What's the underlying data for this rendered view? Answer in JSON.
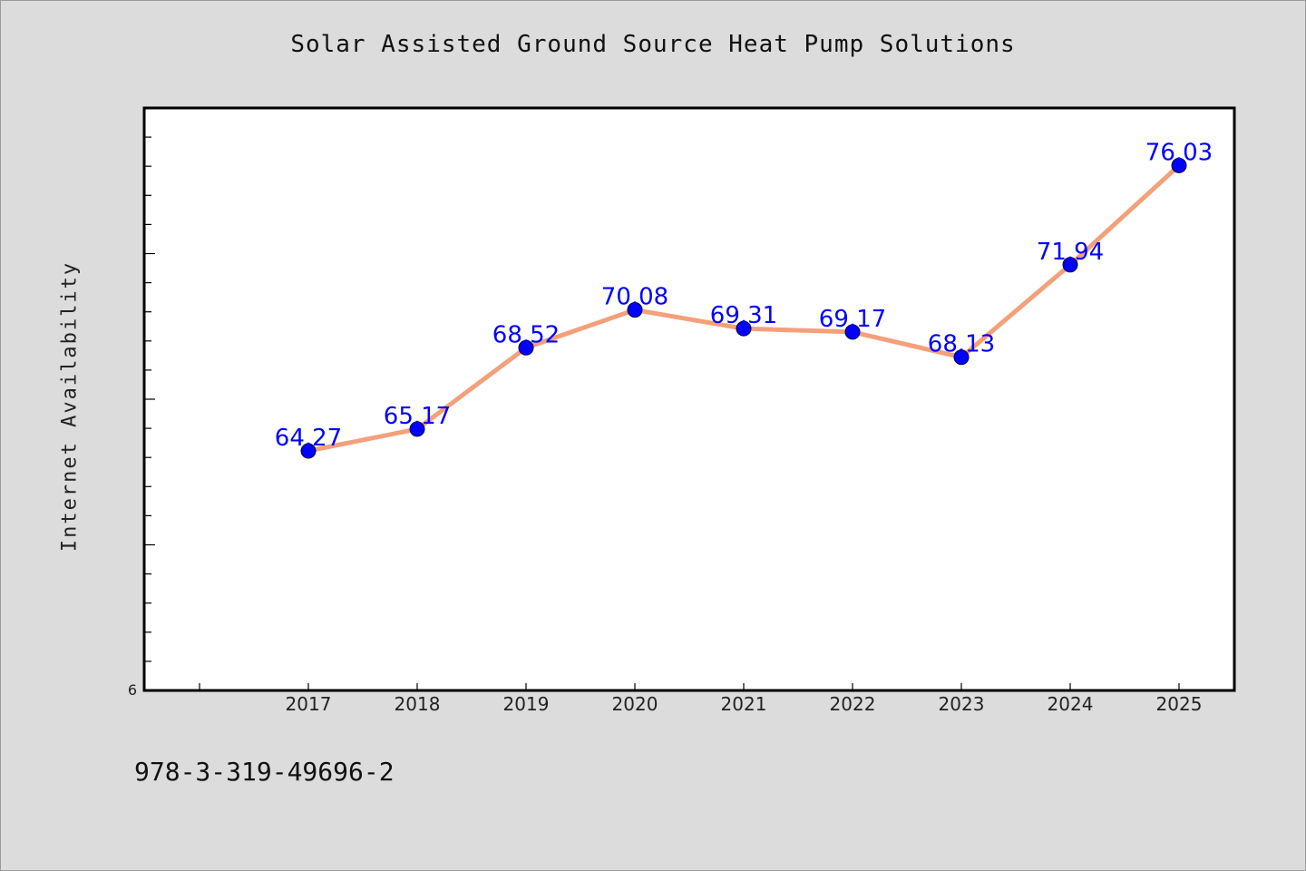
{
  "title": "Solar Assisted Ground Source Heat Pump Solutions",
  "footer_code": "978-3-319-49696-2",
  "colors": {
    "background": "#dcdcdc",
    "plot_background": "#ffffff",
    "line": "#f4a07a",
    "marker": "#0000ff",
    "data_label": "#0000ff"
  },
  "chart_data": {
    "type": "line",
    "title": "Solar Assisted Ground Source Heat Pump Solutions",
    "xlabel": "",
    "ylabel": "Internet Availability",
    "categories": [
      "2017",
      "2018",
      "2019",
      "2020",
      "2021",
      "2022",
      "2023",
      "2024",
      "2025"
    ],
    "values": [
      64.27,
      65.17,
      68.52,
      70.08,
      69.31,
      69.17,
      68.13,
      71.94,
      76.03
    ],
    "data_labels": [
      "64.27",
      "65.17",
      "68.52",
      "70.08",
      "69.31",
      "69.17",
      "68.13",
      "71.94",
      "76.03"
    ],
    "y_tick_labels": [
      "6"
    ],
    "ylim": [
      54.4,
      78.4
    ],
    "grid": false,
    "legend": "none"
  }
}
